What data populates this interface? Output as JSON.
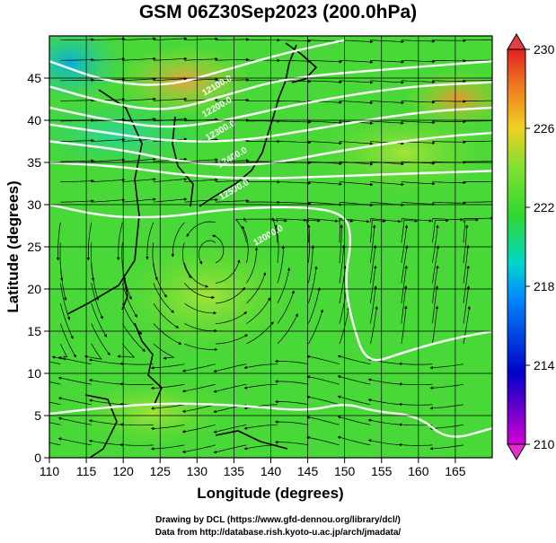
{
  "title": "GSM 06Z30Sep2023 (200.0hPa)",
  "credits": {
    "line1": "Drawing by DCL (https://www.gfd-dennou.org/library/dcl/)",
    "line2": "Data from http://database.rish.kyoto-u.ac.jp/arch/jmadata/"
  },
  "chart_data": {
    "type": "heatmap",
    "title": "GSM 06Z30Sep2023 (200.0hPa)",
    "xlabel": "Longitude (degrees)",
    "ylabel": "Latitude  (degrees)",
    "xlim": [
      110,
      170
    ],
    "ylim": [
      0,
      50
    ],
    "xticks": [
      110,
      115,
      120,
      125,
      130,
      135,
      140,
      145,
      150,
      155,
      160,
      165
    ],
    "yticks": [
      0,
      5,
      10,
      15,
      20,
      25,
      30,
      35,
      40,
      45
    ],
    "grid": true,
    "colorbar": {
      "min": 210,
      "max": 230,
      "ticks": [
        210,
        214,
        218,
        222,
        226,
        230
      ],
      "colors": [
        "#d400d4",
        "#0000c8",
        "#0090ff",
        "#00d8c8",
        "#30d830",
        "#80e030",
        "#f0d020",
        "#f08020",
        "#e02020"
      ]
    },
    "contour_labels": [
      "12000.0",
      "12100.0",
      "12200.0",
      "12300.0",
      "12400.0",
      "12500.0"
    ],
    "contour_lines": [
      {
        "points": [
          [
            110,
            47
          ],
          [
            118,
            44.5
          ],
          [
            126,
            44
          ],
          [
            134,
            46
          ],
          [
            142,
            48
          ],
          [
            150,
            49.5
          ]
        ]
      },
      {
        "points": [
          [
            110,
            44
          ],
          [
            118,
            42
          ],
          [
            126,
            41
          ],
          [
            134,
            43
          ],
          [
            142,
            45
          ],
          [
            155,
            46
          ],
          [
            170,
            47
          ]
        ]
      },
      {
        "points": [
          [
            110,
            41.5
          ],
          [
            118,
            40
          ],
          [
            126,
            39
          ],
          [
            134,
            40
          ],
          [
            144,
            42
          ],
          [
            158,
            44
          ],
          [
            170,
            44.5
          ]
        ]
      },
      {
        "points": [
          [
            110,
            39.5
          ],
          [
            118,
            38.5
          ],
          [
            126,
            37.5
          ],
          [
            136,
            37.5
          ],
          [
            146,
            39
          ],
          [
            160,
            41
          ],
          [
            170,
            41.5
          ]
        ]
      },
      {
        "points": [
          [
            110,
            37.5
          ],
          [
            120,
            36.5
          ],
          [
            128,
            35
          ],
          [
            138,
            34.5
          ],
          [
            150,
            36.5
          ],
          [
            162,
            38
          ],
          [
            170,
            38.5
          ]
        ]
      },
      {
        "points": [
          [
            110,
            35
          ],
          [
            120,
            34.5
          ],
          [
            128,
            33.5
          ],
          [
            138,
            33
          ],
          [
            152,
            33.5
          ],
          [
            170,
            34
          ]
        ]
      },
      {
        "points": [
          [
            110,
            30
          ],
          [
            118,
            28.5
          ],
          [
            126,
            28.5
          ],
          [
            134,
            29.5
          ],
          [
            144,
            29.8
          ],
          [
            150,
            29
          ],
          [
            151,
            26
          ],
          [
            150,
            21
          ],
          [
            151,
            16
          ],
          [
            153,
            11
          ],
          [
            158,
            12.5
          ],
          [
            164,
            14
          ],
          [
            170,
            15
          ]
        ]
      },
      {
        "points": [
          [
            110,
            5.2
          ],
          [
            118,
            6
          ],
          [
            126,
            6.5
          ],
          [
            136,
            6.2
          ],
          [
            145,
            5.5
          ],
          [
            150,
            6.5
          ],
          [
            154,
            5.5
          ],
          [
            160,
            5
          ],
          [
            164,
            2
          ],
          [
            170,
            3.5
          ]
        ]
      }
    ]
  }
}
